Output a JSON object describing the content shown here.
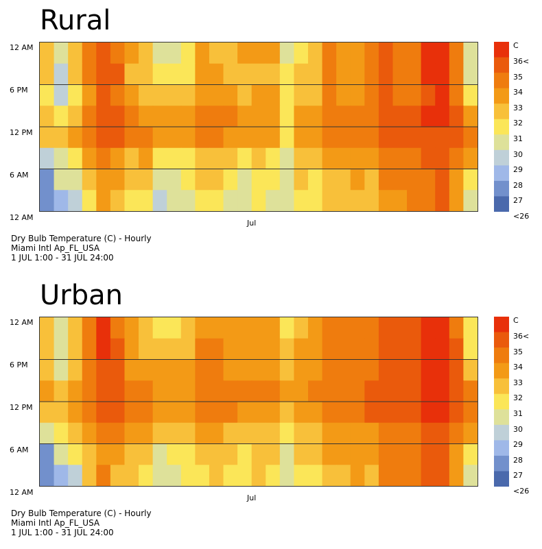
{
  "chart_data": [
    {
      "type": "heatmap",
      "title": "Rural",
      "ylabels": [
        "12 AM",
        "6 PM",
        "12 PM",
        "6 AM",
        "12 AM"
      ],
      "xlabel_month": "Jul",
      "caption": [
        "Dry Bulb Temperature (C) - Hourly",
        "Miami Intl Ap_FL_USA",
        "1 JUL 1:00 - 31 JUL 24:00"
      ],
      "legend": {
        "unit": "C",
        "labels": [
          "36<",
          "35",
          "34",
          "33",
          "32",
          "31",
          "30",
          "29",
          "28",
          "27",
          "<26"
        ],
        "colors": [
          "#e8300a",
          "#ea5a0c",
          "#ef7c0e",
          "#f39a16",
          "#f8c03a",
          "#fbe658",
          "#dee19a",
          "#bfd0d8",
          "#9fb8e8",
          "#7290cc",
          "#4a69ac"
        ]
      },
      "days": 31,
      "bands_per_day": 8,
      "values": [
        [
          32,
          30,
          32,
          34,
          35,
          34,
          33,
          32,
          30,
          30,
          31,
          33,
          32,
          32,
          33,
          33,
          33,
          30,
          31,
          32,
          34,
          33,
          33,
          34,
          35,
          34,
          34,
          36,
          36,
          34,
          30
        ],
        [
          32,
          29,
          32,
          34,
          35,
          35,
          32,
          32,
          31,
          31,
          31,
          33,
          33,
          32,
          32,
          32,
          32,
          31,
          32,
          32,
          34,
          33,
          33,
          34,
          35,
          34,
          34,
          36,
          36,
          34,
          30
        ],
        [
          31,
          29,
          31,
          33,
          35,
          34,
          33,
          32,
          32,
          32,
          32,
          33,
          33,
          33,
          32,
          33,
          33,
          31,
          32,
          32,
          34,
          33,
          33,
          34,
          35,
          34,
          34,
          35,
          36,
          34,
          31
        ],
        [
          32,
          31,
          32,
          34,
          35,
          35,
          34,
          33,
          33,
          33,
          33,
          34,
          34,
          34,
          33,
          33,
          33,
          31,
          33,
          33,
          34,
          34,
          34,
          34,
          35,
          35,
          35,
          36,
          36,
          35,
          33
        ],
        [
          32,
          32,
          33,
          34,
          35,
          35,
          34,
          34,
          33,
          33,
          33,
          34,
          34,
          33,
          33,
          33,
          33,
          31,
          33,
          33,
          34,
          34,
          34,
          34,
          35,
          35,
          35,
          35,
          35,
          35,
          34
        ],
        [
          29,
          30,
          31,
          33,
          34,
          33,
          32,
          33,
          31,
          31,
          31,
          32,
          32,
          32,
          31,
          32,
          31,
          30,
          32,
          32,
          33,
          33,
          33,
          33,
          34,
          34,
          34,
          35,
          35,
          34,
          33
        ],
        [
          27,
          30,
          30,
          32,
          33,
          33,
          32,
          32,
          30,
          30,
          31,
          32,
          32,
          31,
          30,
          31,
          31,
          30,
          32,
          31,
          32,
          32,
          33,
          32,
          34,
          34,
          34,
          34,
          35,
          33,
          31
        ],
        [
          27,
          28,
          29,
          31,
          33,
          32,
          31,
          31,
          29,
          30,
          30,
          31,
          31,
          30,
          30,
          31,
          30,
          30,
          31,
          31,
          32,
          32,
          32,
          32,
          33,
          33,
          34,
          34,
          35,
          33,
          30
        ]
      ]
    },
    {
      "type": "heatmap",
      "title": "Urban",
      "ylabels": [
        "12 AM",
        "6 PM",
        "12 PM",
        "6 AM",
        "12 AM"
      ],
      "xlabel_month": "Jul",
      "caption": [
        "Dry Bulb Temperature (C) - Hourly",
        "Miami Intl Ap_FL_USA",
        "1 JUL 1:00 - 31 JUL 24:00"
      ],
      "legend": {
        "unit": "C",
        "labels": [
          "36<",
          "35",
          "34",
          "33",
          "32",
          "31",
          "30",
          "29",
          "28",
          "27",
          "<26"
        ],
        "colors": [
          "#e8300a",
          "#ea5a0c",
          "#ef7c0e",
          "#f39a16",
          "#f8c03a",
          "#fbe658",
          "#dee19a",
          "#bfd0d8",
          "#9fb8e8",
          "#7290cc",
          "#4a69ac"
        ]
      },
      "days": 31,
      "bands_per_day": 8,
      "values": [
        [
          32,
          30,
          32,
          34,
          36,
          34,
          33,
          32,
          31,
          31,
          32,
          33,
          33,
          33,
          33,
          33,
          33,
          31,
          32,
          33,
          34,
          34,
          34,
          34,
          35,
          35,
          35,
          36,
          36,
          34,
          31
        ],
        [
          32,
          30,
          32,
          34,
          36,
          35,
          33,
          32,
          32,
          32,
          32,
          34,
          34,
          33,
          33,
          33,
          33,
          32,
          33,
          33,
          34,
          34,
          34,
          34,
          35,
          35,
          35,
          36,
          36,
          35,
          31
        ],
        [
          32,
          30,
          32,
          34,
          35,
          35,
          33,
          33,
          33,
          33,
          33,
          34,
          34,
          33,
          33,
          33,
          33,
          32,
          33,
          33,
          34,
          34,
          34,
          34,
          35,
          35,
          35,
          36,
          36,
          35,
          32
        ],
        [
          33,
          32,
          33,
          34,
          35,
          35,
          34,
          34,
          33,
          33,
          33,
          34,
          34,
          34,
          34,
          34,
          34,
          33,
          33,
          34,
          34,
          34,
          34,
          35,
          35,
          35,
          35,
          36,
          36,
          35,
          34
        ],
        [
          32,
          32,
          33,
          34,
          35,
          35,
          34,
          34,
          33,
          33,
          33,
          34,
          34,
          34,
          33,
          33,
          33,
          32,
          33,
          33,
          34,
          34,
          34,
          35,
          35,
          35,
          35,
          36,
          36,
          35,
          34
        ],
        [
          30,
          31,
          32,
          33,
          34,
          34,
          33,
          33,
          32,
          32,
          32,
          33,
          33,
          32,
          32,
          32,
          32,
          31,
          32,
          32,
          33,
          33,
          33,
          33,
          34,
          34,
          34,
          35,
          35,
          34,
          33
        ],
        [
          27,
          30,
          31,
          32,
          33,
          33,
          32,
          32,
          30,
          31,
          31,
          32,
          32,
          32,
          31,
          32,
          32,
          30,
          32,
          32,
          33,
          33,
          33,
          33,
          34,
          34,
          34,
          35,
          35,
          33,
          31
        ],
        [
          27,
          28,
          29,
          32,
          34,
          32,
          32,
          31,
          30,
          30,
          31,
          31,
          32,
          31,
          31,
          32,
          31,
          30,
          31,
          31,
          32,
          32,
          33,
          32,
          34,
          34,
          34,
          35,
          35,
          33,
          30
        ]
      ]
    }
  ]
}
